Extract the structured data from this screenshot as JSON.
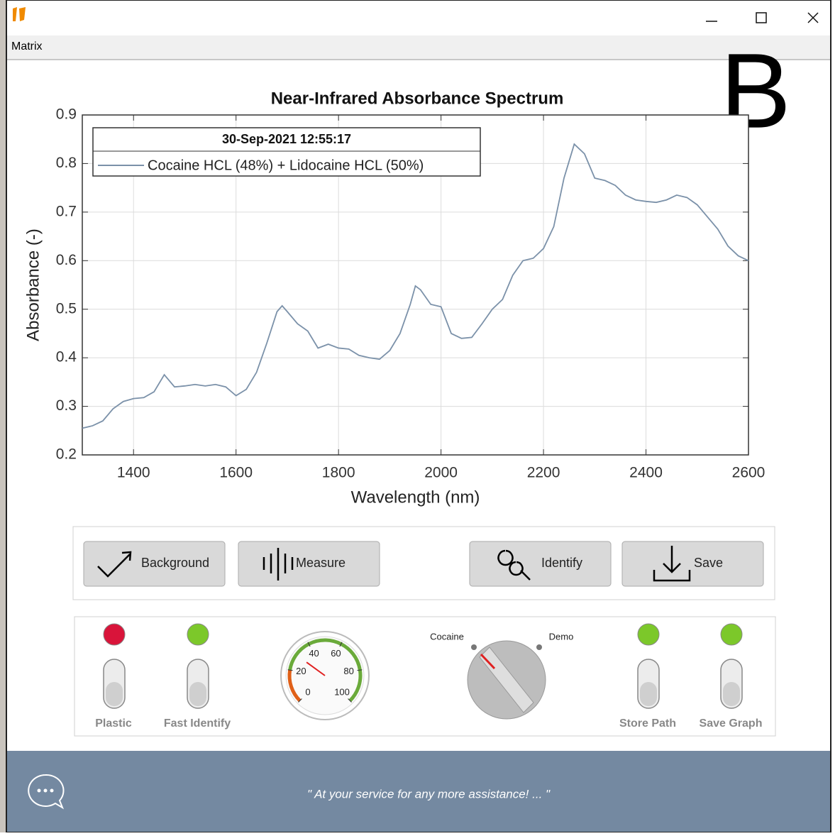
{
  "window": {
    "menu": "Matrix",
    "badge": "B"
  },
  "chart_data": {
    "type": "line",
    "title": "Near-Infrared Absorbance Spectrum",
    "x_label": "Wavelength (nm)",
    "y_label": "Absorbance (-)",
    "legend_title": "30-Sep-2021 12:55:17",
    "x": [
      1300,
      1320,
      1340,
      1360,
      1380,
      1400,
      1420,
      1440,
      1460,
      1480,
      1500,
      1520,
      1540,
      1560,
      1580,
      1600,
      1620,
      1640,
      1660,
      1680,
      1690,
      1700,
      1720,
      1740,
      1760,
      1780,
      1800,
      1820,
      1840,
      1860,
      1880,
      1900,
      1920,
      1940,
      1950,
      1960,
      1980,
      2000,
      2020,
      2040,
      2060,
      2080,
      2100,
      2120,
      2140,
      2160,
      2180,
      2200,
      2220,
      2240,
      2260,
      2280,
      2300,
      2320,
      2340,
      2360,
      2380,
      2400,
      2420,
      2440,
      2460,
      2480,
      2500,
      2520,
      2540,
      2560,
      2580,
      2600
    ],
    "series": [
      {
        "name": "Cocaine HCL (48%) + Lidocaine HCL (50%)",
        "color": "#7b91a9",
        "values": [
          0.255,
          0.26,
          0.27,
          0.295,
          0.31,
          0.316,
          0.318,
          0.33,
          0.365,
          0.34,
          0.342,
          0.345,
          0.342,
          0.345,
          0.34,
          0.322,
          0.335,
          0.37,
          0.43,
          0.495,
          0.507,
          0.495,
          0.47,
          0.455,
          0.42,
          0.428,
          0.42,
          0.418,
          0.405,
          0.4,
          0.397,
          0.415,
          0.45,
          0.51,
          0.548,
          0.54,
          0.51,
          0.505,
          0.45,
          0.44,
          0.442,
          0.47,
          0.5,
          0.52,
          0.57,
          0.6,
          0.605,
          0.625,
          0.67,
          0.77,
          0.84,
          0.82,
          0.77,
          0.765,
          0.755,
          0.735,
          0.725,
          0.722,
          0.72,
          0.725,
          0.735,
          0.73,
          0.715,
          0.69,
          0.665,
          0.63,
          0.61,
          0.6
        ]
      }
    ],
    "xlim": [
      1300,
      2600
    ],
    "xticks": [
      1400,
      1600,
      1800,
      2000,
      2200,
      2400,
      2600
    ],
    "ylim": [
      0.2,
      0.9
    ],
    "yticks": [
      0.2,
      0.3,
      0.4,
      0.5,
      0.6,
      0.7,
      0.8,
      0.9
    ],
    "grid": true
  },
  "buttons": [
    "Background",
    "Measure",
    "Identify",
    "Save"
  ],
  "indicators": [
    {
      "label": "Plastic",
      "lamp": "#d9143a"
    },
    {
      "label": "Fast Identify",
      "lamp": "#7cc82a"
    },
    {
      "label": "Store Path",
      "lamp": "#7cc82a"
    },
    {
      "label": "Save Graph",
      "lamp": "#7cc82a"
    }
  ],
  "gauge": {
    "ticks": [
      0,
      20,
      40,
      60,
      80,
      100
    ],
    "value": 30
  },
  "knob": {
    "left": "Cocaine",
    "right": "Demo"
  },
  "footer": {
    "message": "\" At your service for any more assistance!  ... \""
  }
}
